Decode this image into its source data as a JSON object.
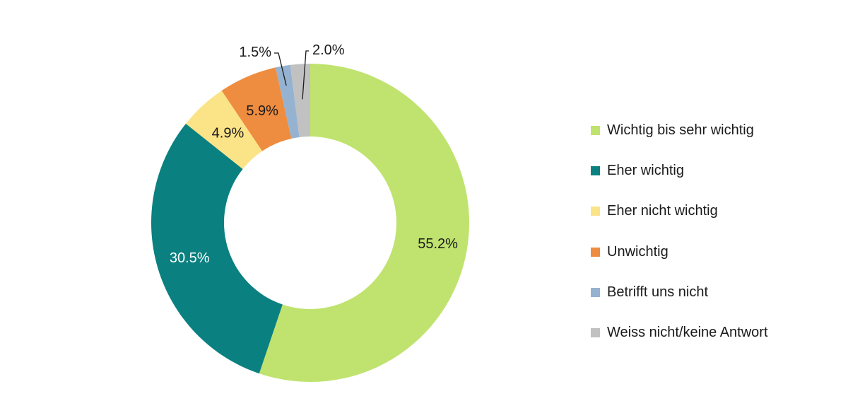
{
  "chart_data": {
    "type": "pie",
    "variant": "donut",
    "legend_position": "right",
    "categories": [
      "Wichtig bis sehr wichtig",
      "Eher wichtig",
      "Eher nicht wichtig",
      "Unwichtig",
      "Betrifft uns nicht",
      "Weiss nicht/keine Antwort"
    ],
    "values": [
      55.2,
      30.5,
      4.9,
      5.9,
      1.5,
      2.0
    ],
    "value_labels": [
      "55.2%",
      "30.5%",
      "4.9%",
      "5.9%",
      "1.5%",
      "2.0%"
    ],
    "colors": [
      "#bfe36e",
      "#0a8080",
      "#fbe387",
      "#ee8c3f",
      "#95b3d1",
      "#c1c1c1"
    ],
    "label_colors": [
      "#1a1a1a",
      "#ffffff",
      "#1a1a1a",
      "#1a1a1a",
      "#1a1a1a",
      "#1a1a1a"
    ]
  }
}
